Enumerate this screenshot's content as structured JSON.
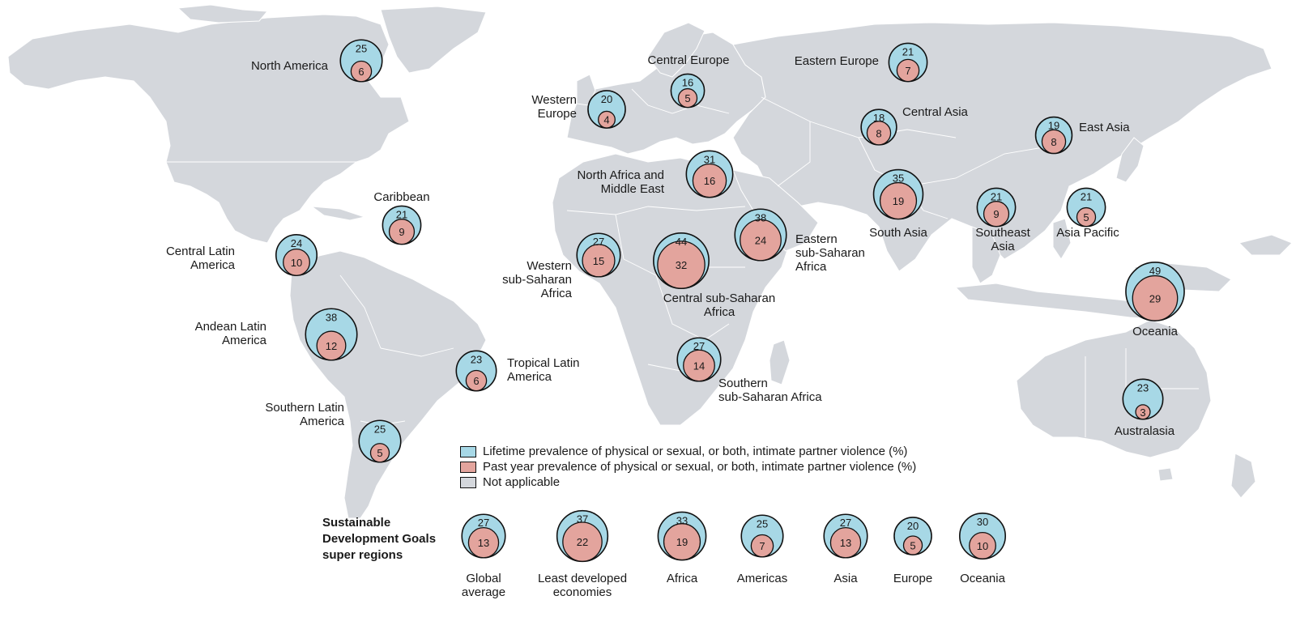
{
  "colors": {
    "lifetime": "#a7d8e6",
    "past_year": "#e3a49d",
    "not_applicable": "#d4d7dc",
    "land": "#d4d7dc"
  },
  "legend": [
    {
      "key": "lifetime",
      "label": "Lifetime prevalence of physical or sexual, or both, intimate partner violence (%)"
    },
    {
      "key": "past_year",
      "label": "Past year prevalence of physical or sexual, or both, intimate partner violence (%)"
    },
    {
      "key": "not_applicable",
      "label": "Not applicable"
    }
  ],
  "sdg_title": [
    "Sustainable",
    "Development Goals",
    "super regions"
  ],
  "regions": [
    {
      "name": "North America",
      "label_lines": [
        "North America"
      ],
      "lifetime": 25,
      "past_year": 6
    },
    {
      "name": "Central Europe",
      "label_lines": [
        "Central Europe"
      ],
      "lifetime": 16,
      "past_year": 5
    },
    {
      "name": "Western Europe",
      "label_lines": [
        "Western",
        "Europe"
      ],
      "lifetime": 20,
      "past_year": 4
    },
    {
      "name": "Eastern Europe",
      "label_lines": [
        "Eastern Europe"
      ],
      "lifetime": 21,
      "past_year": 7
    },
    {
      "name": "Central Asia",
      "label_lines": [
        "Central Asia"
      ],
      "lifetime": 18,
      "past_year": 8
    },
    {
      "name": "East Asia",
      "label_lines": [
        "East Asia"
      ],
      "lifetime": 19,
      "past_year": 8
    },
    {
      "name": "North Africa and Middle East",
      "label_lines": [
        "North Africa and",
        "Middle East"
      ],
      "lifetime": 31,
      "past_year": 16
    },
    {
      "name": "Caribbean",
      "label_lines": [
        "Caribbean"
      ],
      "lifetime": 21,
      "past_year": 9
    },
    {
      "name": "South Asia",
      "label_lines": [
        "South Asia"
      ],
      "lifetime": 35,
      "past_year": 19
    },
    {
      "name": "Southeast Asia",
      "label_lines": [
        "Southeast",
        "Asia"
      ],
      "lifetime": 21,
      "past_year": 9
    },
    {
      "name": "Asia Pacific",
      "label_lines": [
        "Asia Pacific"
      ],
      "lifetime": 21,
      "past_year": 5
    },
    {
      "name": "Central Latin America",
      "label_lines": [
        "Central Latin",
        "America"
      ],
      "lifetime": 24,
      "past_year": 10
    },
    {
      "name": "Western sub-Saharan Africa",
      "label_lines": [
        "Western",
        "sub-Saharan",
        "Africa"
      ],
      "lifetime": 27,
      "past_year": 15
    },
    {
      "name": "Central sub-Saharan Africa",
      "label_lines": [
        "Central sub-Saharan",
        "Africa"
      ],
      "lifetime": 44,
      "past_year": 32
    },
    {
      "name": "Eastern sub-Saharan Africa",
      "label_lines": [
        "Eastern",
        "sub-Saharan",
        "Africa"
      ],
      "lifetime": 38,
      "past_year": 24
    },
    {
      "name": "Oceania",
      "label_lines": [
        "Oceania"
      ],
      "lifetime": 49,
      "past_year": 29
    },
    {
      "name": "Andean Latin America",
      "label_lines": [
        "Andean Latin",
        "America"
      ],
      "lifetime": 38,
      "past_year": 12
    },
    {
      "name": "Tropical Latin America",
      "label_lines": [
        "Tropical Latin",
        "America"
      ],
      "lifetime": 23,
      "past_year": 6
    },
    {
      "name": "Southern sub-Saharan Africa",
      "label_lines": [
        "Southern",
        "sub-Saharan Africa"
      ],
      "lifetime": 27,
      "past_year": 14
    },
    {
      "name": "Australasia",
      "label_lines": [
        "Australasia"
      ],
      "lifetime": 23,
      "past_year": 3
    },
    {
      "name": "Southern Latin America",
      "label_lines": [
        "Southern Latin",
        "America"
      ],
      "lifetime": 25,
      "past_year": 5
    }
  ],
  "super_regions": [
    {
      "name": "Global average",
      "label_lines": [
        "Global",
        "average"
      ],
      "lifetime": 27,
      "past_year": 13
    },
    {
      "name": "Least developed economies",
      "label_lines": [
        "Least developed",
        "economies"
      ],
      "lifetime": 37,
      "past_year": 22
    },
    {
      "name": "Africa",
      "label_lines": [
        "Africa"
      ],
      "lifetime": 33,
      "past_year": 19
    },
    {
      "name": "Americas",
      "label_lines": [
        "Americas"
      ],
      "lifetime": 25,
      "past_year": 7
    },
    {
      "name": "Asia",
      "label_lines": [
        "Asia"
      ],
      "lifetime": 27,
      "past_year": 13
    },
    {
      "name": "Europe",
      "label_lines": [
        "Europe"
      ],
      "lifetime": 20,
      "past_year": 5
    },
    {
      "name": "Oceania",
      "label_lines": [
        "Oceania"
      ],
      "lifetime": 30,
      "past_year": 10
    }
  ]
}
